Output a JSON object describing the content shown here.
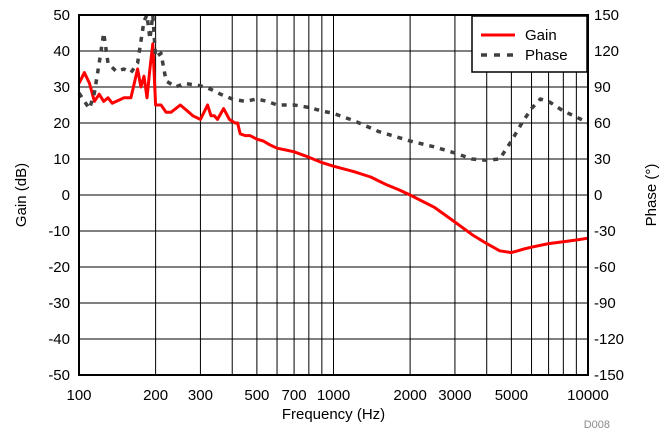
{
  "chart_data": {
    "type": "line",
    "x_scale": "log",
    "xlabel": "Frequency (Hz)",
    "ylabel_left": "Gain (dB)",
    "ylabel_right": "Phase (°)",
    "xlim": [
      100,
      10000
    ],
    "ylim_left": [
      -50,
      50
    ],
    "ylim_right": [
      -150,
      150
    ],
    "x_ticks": [
      100,
      200,
      300,
      500,
      700,
      1000,
      2000,
      3000,
      5000,
      10000
    ],
    "x_tick_labels": [
      "100",
      "200",
      "300",
      "500",
      "700",
      "1000",
      "2000",
      "3000",
      "5000",
      "10000"
    ],
    "y_left_ticks": [
      50,
      40,
      30,
      20,
      10,
      0,
      -10,
      -20,
      -30,
      -40,
      -50
    ],
    "y_left_tick_labels": [
      "50",
      "40",
      "30",
      "20",
      "10",
      "0",
      "-10",
      "-20",
      "-30",
      "-40",
      "-50"
    ],
    "y_right_ticks": [
      150,
      120,
      90,
      60,
      30,
      0,
      -30,
      -60,
      -90,
      -120,
      -150
    ],
    "y_right_tick_labels": [
      "150",
      "120",
      "90",
      "60",
      "30",
      "0",
      "-30",
      "-60",
      "-90",
      "-120",
      "-150"
    ],
    "grid": true,
    "legend_position": "top-right",
    "series": [
      {
        "name": "Gain",
        "axis": "left",
        "style": "solid",
        "color": "#ff0000",
        "x": [
          100,
          105,
          110,
          115,
          120,
          125,
          130,
          135,
          140,
          145,
          150,
          160,
          170,
          175,
          180,
          185,
          190,
          195,
          200,
          205,
          210,
          220,
          230,
          240,
          250,
          260,
          270,
          280,
          300,
          320,
          330,
          340,
          350,
          370,
          390,
          410,
          420,
          430,
          450,
          470,
          500,
          530,
          560,
          600,
          650,
          700,
          800,
          900,
          1000,
          1200,
          1400,
          1600,
          1800,
          2000,
          2500,
          3000,
          3500,
          4000,
          4500,
          5000,
          5300,
          5600,
          6000,
          7000,
          8000,
          9000,
          10000
        ],
        "y": [
          31,
          34,
          31,
          26,
          28,
          26,
          27,
          25.5,
          26,
          26.5,
          27,
          27,
          35,
          30,
          33,
          27,
          35,
          42,
          25,
          25,
          25,
          23,
          23,
          24,
          25,
          24,
          23,
          22,
          21,
          25,
          22,
          22,
          21,
          24,
          21,
          20,
          20,
          17,
          16.5,
          16.5,
          15.5,
          15,
          14,
          13,
          12.5,
          12,
          10.5,
          9,
          8,
          6.5,
          5,
          3,
          1.5,
          0,
          -3.5,
          -7.5,
          -11,
          -13.5,
          -15.5,
          -16,
          -15.5,
          -15,
          -14.5,
          -13.5,
          -13,
          -12.5,
          -12
        ]
      },
      {
        "name": "Phase",
        "axis": "right",
        "style": "dashed",
        "color": "#404040",
        "x": [
          100,
          105,
          110,
          115,
          120,
          125,
          130,
          140,
          150,
          160,
          170,
          180,
          185,
          190,
          195,
          200,
          210,
          220,
          240,
          260,
          280,
          300,
          330,
          360,
          400,
          450,
          500,
          550,
          600,
          700,
          800,
          900,
          1000,
          1200,
          1500,
          2000,
          2500,
          3000,
          3500,
          4000,
          4500,
          5000,
          5500,
          6000,
          6500,
          7000,
          8000,
          9000,
          10000
        ],
        "y": [
          85,
          78,
          72,
          85,
          110,
          135,
          110,
          103,
          105,
          102,
          110,
          145,
          150,
          130,
          150,
          115,
          118,
          95,
          90,
          93,
          92,
          91,
          88,
          84,
          80,
          78,
          80,
          78,
          75,
          75,
          73,
          70,
          68,
          62,
          53,
          45,
          40,
          35,
          30,
          29,
          30,
          45,
          60,
          72,
          80,
          78,
          70,
          65,
          60
        ]
      }
    ],
    "watermark": "D008"
  }
}
